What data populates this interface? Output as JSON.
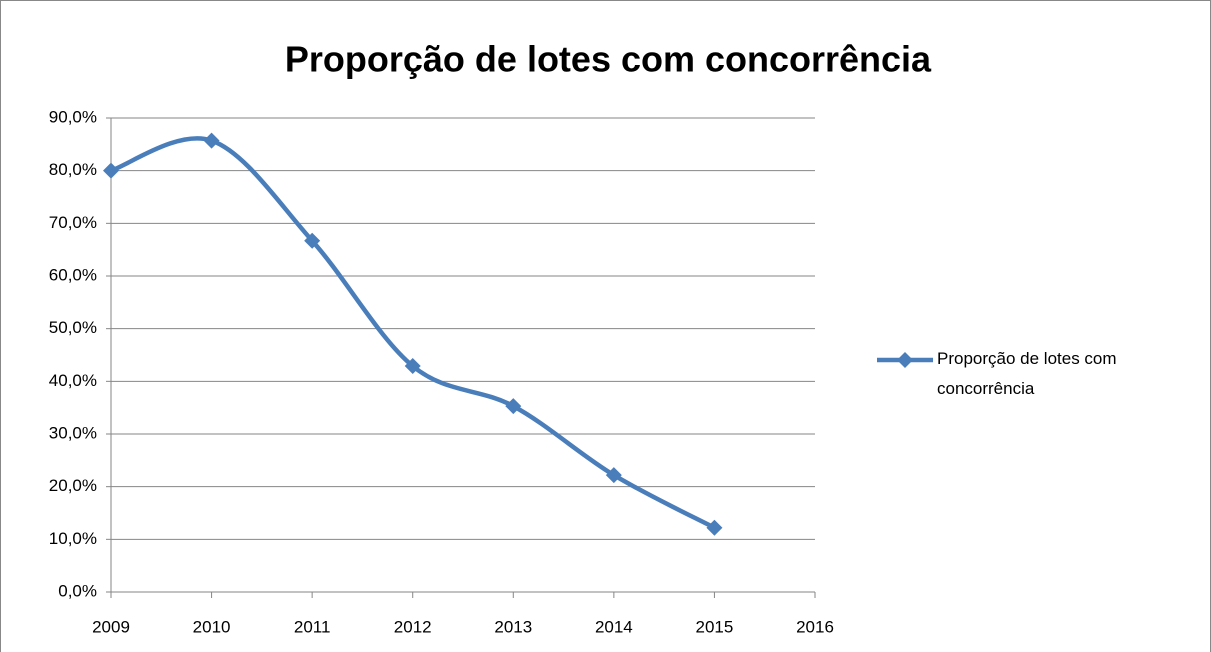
{
  "chart_data": {
    "type": "line",
    "title": "Proporção de lotes com concorrência",
    "x": [
      2009,
      2010,
      2011,
      2012,
      2013,
      2014,
      2015
    ],
    "series": [
      {
        "name": "Proporção de lotes com concorrência",
        "color": "#4a7ebb",
        "values": [
          80,
          85.7,
          66.7,
          42.9,
          35.3,
          22.2,
          12.2
        ]
      }
    ],
    "xlim": [
      2009,
      2016
    ],
    "xticks": [
      2009,
      2010,
      2011,
      2012,
      2013,
      2014,
      2015,
      2016
    ],
    "ylim": [
      0,
      90
    ],
    "yticks": [
      {
        "value": 0,
        "label": "0,0%"
      },
      {
        "value": 10,
        "label": "10,0%"
      },
      {
        "value": 20,
        "label": "20,0%"
      },
      {
        "value": 30,
        "label": "30,0%"
      },
      {
        "value": 40,
        "label": "40,0%"
      },
      {
        "value": 50,
        "label": "50,0%"
      },
      {
        "value": 60,
        "label": "60,0%"
      },
      {
        "value": 70,
        "label": "70,0%"
      },
      {
        "value": 80,
        "label": "80,0%"
      },
      {
        "value": 90,
        "label": "90,0%"
      }
    ],
    "grid": true,
    "smooth": true,
    "legend": "right"
  }
}
